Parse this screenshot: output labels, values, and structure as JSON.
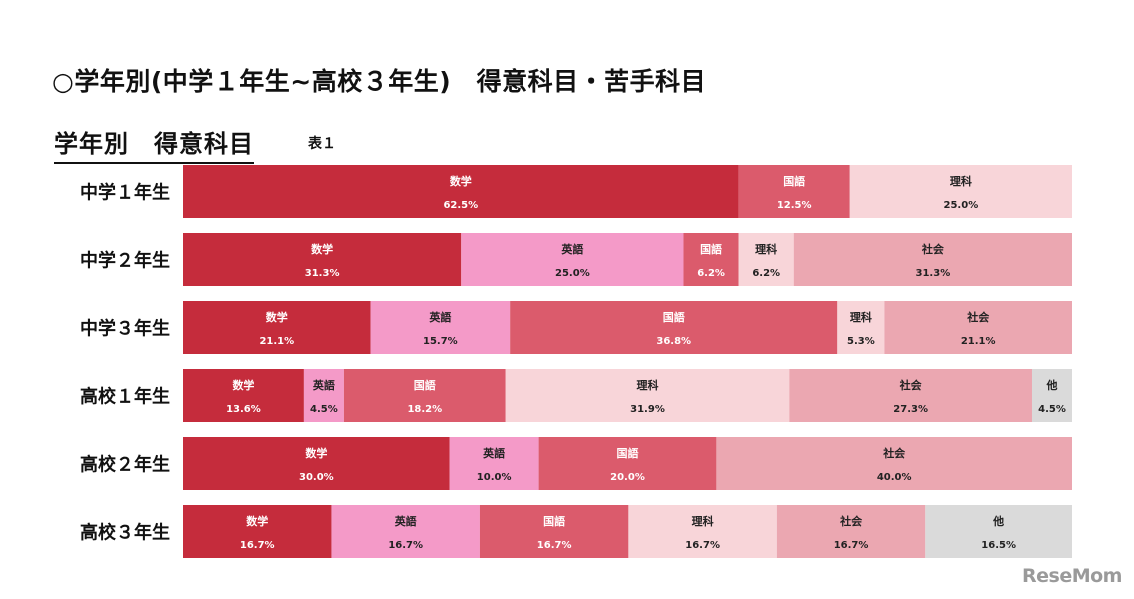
{
  "header": {
    "title": "○学年別(中学１年生~高校３年生)　得意科目・苦手科目",
    "subtitle": "学年別　得意科目",
    "table_label": "表１"
  },
  "watermark": "ReseMom",
  "colors": {
    "数学": "#c52c3c",
    "英語": "#f49ac8",
    "国語": "#db5b6c",
    "理科": "#f8d5d9",
    "社会": "#eba7b1",
    "他": "#dadada"
  },
  "chart_data": {
    "type": "bar",
    "orientation": "horizontal",
    "stacked": true,
    "percent": true,
    "title": "学年別　得意科目",
    "xlim": [
      0,
      100
    ],
    "categories": [
      "中学１年生",
      "中学２年生",
      "中学３年生",
      "高校１年生",
      "高校２年生",
      "高校３年生"
    ],
    "rows": [
      {
        "category": "中学１年生",
        "segments": [
          {
            "name": "数学",
            "value": 62.5,
            "label": "62.5%"
          },
          {
            "name": "国語",
            "value": 12.5,
            "label": "12.5%"
          },
          {
            "name": "理科",
            "value": 25.0,
            "label": "25.0%"
          }
        ]
      },
      {
        "category": "中学２年生",
        "segments": [
          {
            "name": "数学",
            "value": 31.3,
            "label": "31.3%"
          },
          {
            "name": "英語",
            "value": 25.0,
            "label": "25.0%"
          },
          {
            "name": "国語",
            "value": 6.2,
            "label": "6.2%"
          },
          {
            "name": "理科",
            "value": 6.2,
            "label": "6.2%"
          },
          {
            "name": "社会",
            "value": 31.3,
            "label": "31.3%"
          }
        ]
      },
      {
        "category": "中学３年生",
        "segments": [
          {
            "name": "数学",
            "value": 21.1,
            "label": "21.1%"
          },
          {
            "name": "英語",
            "value": 15.7,
            "label": "15.7%"
          },
          {
            "name": "国語",
            "value": 36.8,
            "label": "36.8%"
          },
          {
            "name": "理科",
            "value": 5.3,
            "label": "5.3%"
          },
          {
            "name": "社会",
            "value": 21.1,
            "label": "21.1%"
          }
        ]
      },
      {
        "category": "高校１年生",
        "segments": [
          {
            "name": "数学",
            "value": 13.6,
            "label": "13.6%"
          },
          {
            "name": "英語",
            "value": 4.5,
            "label": "4.5%"
          },
          {
            "name": "国語",
            "value": 18.2,
            "label": "18.2%"
          },
          {
            "name": "理科",
            "value": 31.9,
            "label": "31.9%"
          },
          {
            "name": "社会",
            "value": 27.3,
            "label": "27.3%"
          },
          {
            "name": "他",
            "value": 4.5,
            "label": "4.5%"
          }
        ]
      },
      {
        "category": "高校２年生",
        "segments": [
          {
            "name": "数学",
            "value": 30.0,
            "label": "30.0%"
          },
          {
            "name": "英語",
            "value": 10.0,
            "label": "10.0%"
          },
          {
            "name": "国語",
            "value": 20.0,
            "label": "20.0%"
          },
          {
            "name": "社会",
            "value": 40.0,
            "label": "40.0%"
          }
        ]
      },
      {
        "category": "高校３年生",
        "segments": [
          {
            "name": "数学",
            "value": 16.7,
            "label": "16.7%"
          },
          {
            "name": "英語",
            "value": 16.7,
            "label": "16.7%"
          },
          {
            "name": "国語",
            "value": 16.7,
            "label": "16.7%"
          },
          {
            "name": "理科",
            "value": 16.7,
            "label": "16.7%"
          },
          {
            "name": "社会",
            "value": 16.7,
            "label": "16.7%"
          },
          {
            "name": "他",
            "value": 16.5,
            "label": "16.5%"
          }
        ]
      }
    ]
  }
}
